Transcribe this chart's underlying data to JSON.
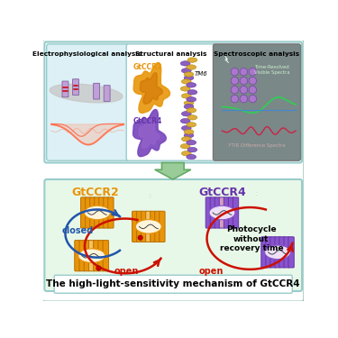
{
  "title": "The high-light-sensitivity mechanism of GtCCR4",
  "panel1_title": "Electrophysiological analysis",
  "panel2_title": "Structural analysis",
  "panel3_title": "Spectroscopic analysis",
  "gtccr2_label": "GtCCR2",
  "gtccr4_label": "GtCCR4",
  "closed_label": "closed",
  "open_label1": "open",
  "open_label2": "open",
  "photocycle_label": "Photocycle\nwithout\nrecovery time",
  "tm6_label": "TM6",
  "tr_label": "Time-Resolved\nVisible Spectra",
  "ftir_label": "FTIR Difference Spectra",
  "orange": "#E8940A",
  "orange_dark": "#B87000",
  "orange_light": "#F5C060",
  "purple": "#6633AA",
  "purple_mid": "#8855CC",
  "purple_light": "#C8A0E8",
  "pink_open": "#D4A0C0",
  "green_bolt": "#33BB33",
  "red_arr": "#CC1100",
  "blue_arr": "#2255AA",
  "panel1_bg": "#DCF0F5",
  "panel2_bg": "#FFFFFF",
  "panel3_bg": "#7A8888",
  "panel3_fg": "#AABBBB",
  "top_section_bg": "#FFFFFF",
  "bottom_bg": "#E8F8E8",
  "big_arrow_fill": "#99CC99",
  "big_arrow_edge": "#66AA66",
  "white": "#FFFFFF",
  "outer_border": "#88BBAA",
  "panel_border": "#99CCCC",
  "gray_membrane": "#C8C8C8",
  "purple_channel_box": "#C0A0D8",
  "red_mark": "#CC0000",
  "salmon_wave": "#FF7755",
  "salmon_fill": "#FFAA88"
}
